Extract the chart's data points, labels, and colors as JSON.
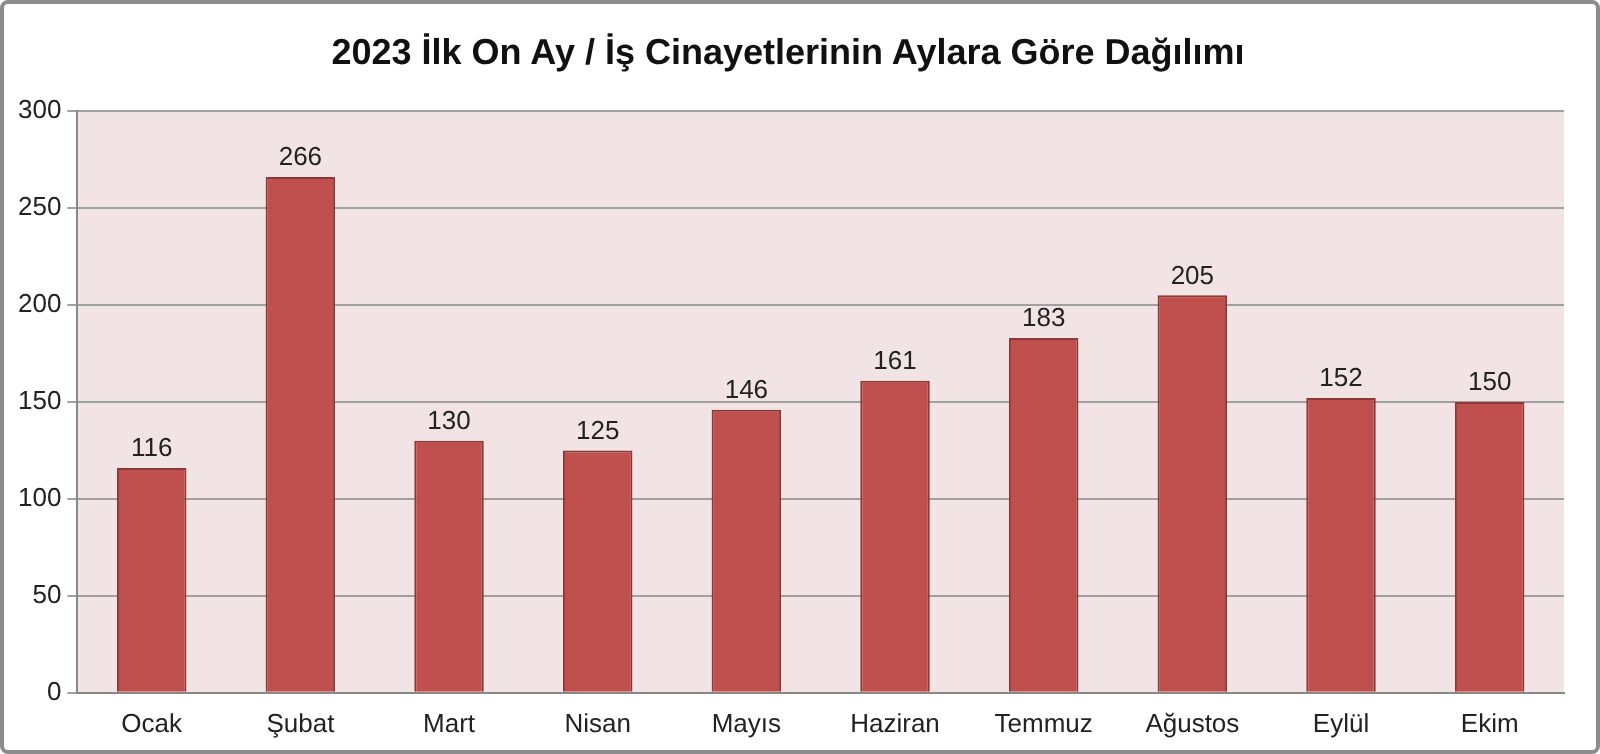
{
  "chart_data": {
    "type": "bar",
    "title": "2023 İlk On Ay / İş Cinayetlerinin Aylara Göre Dağılımı",
    "categories": [
      "Ocak",
      "Şubat",
      "Mart",
      "Nisan",
      "Mayıs",
      "Haziran",
      "Temmuz",
      "Ağustos",
      "Eylül",
      "Ekim"
    ],
    "values": [
      116,
      266,
      130,
      125,
      146,
      161,
      183,
      205,
      152,
      150
    ],
    "color": "#c0504d",
    "ylim": [
      0,
      300
    ],
    "yticks": [
      0,
      50,
      100,
      150,
      200,
      250,
      300
    ],
    "grid": "y",
    "data_labels": true,
    "legend": false
  }
}
